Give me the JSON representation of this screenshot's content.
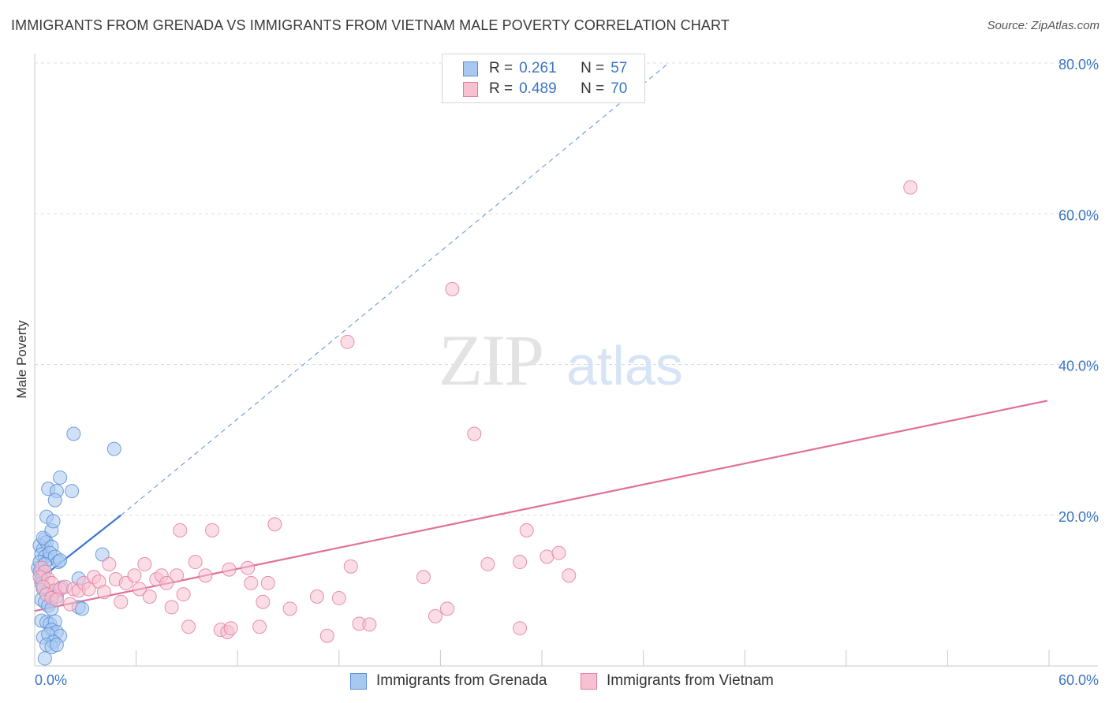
{
  "header": {
    "title": "IMMIGRANTS FROM GRENADA VS IMMIGRANTS FROM VIETNAM MALE POVERTY CORRELATION CHART",
    "source": "Source: ZipAtlas.com"
  },
  "watermark": {
    "zip": "ZIP",
    "atlas": "atlas"
  },
  "legend_top": {
    "rows": [
      {
        "r_label": "R =",
        "r_value": "0.261",
        "n_label": "N =",
        "n_value": "57",
        "color": "#a9c8f0",
        "border": "#5b8fd6"
      },
      {
        "r_label": "R =",
        "r_value": "0.489",
        "n_label": "N =",
        "n_value": "70",
        "color": "#f7c1d2",
        "border": "#e07fa0"
      }
    ]
  },
  "legend_bottom": [
    {
      "label": "Immigrants from Grenada",
      "color": "#a9c8f0",
      "border": "#5b8fd6"
    },
    {
      "label": "Immigrants from Vietnam",
      "color": "#f7c1d2",
      "border": "#e07fa0"
    }
  ],
  "chart_data": {
    "type": "scatter",
    "title": "IMMIGRANTS FROM GRENADA VS IMMIGRANTS FROM VIETNAM MALE POVERTY CORRELATION CHART",
    "xlabel": "",
    "ylabel": "Male Poverty",
    "xlim": [
      0,
      60
    ],
    "ylim": [
      0,
      80
    ],
    "x_tick_labels": [
      "0.0%",
      "60.0%"
    ],
    "y_tick_labels": [
      "80.0%",
      "60.0%",
      "40.0%",
      "20.0%"
    ],
    "y_ticks": [
      80,
      60,
      40,
      20
    ],
    "series": [
      {
        "name": "Immigrants from Grenada",
        "color": "#5b8fd6",
        "fill": "#a9c8f0",
        "r": 0.261,
        "n": 57,
        "trend": {
          "x": [
            0,
            5.1
          ],
          "y": [
            11.0,
            20.0
          ],
          "extended_to": [
            37.5,
            80.0
          ]
        },
        "points": [
          [
            0.3,
            16.0
          ],
          [
            0.5,
            15.5
          ],
          [
            0.4,
            14.8
          ],
          [
            0.6,
            14.5
          ],
          [
            0.2,
            13.0
          ],
          [
            0.3,
            12.5
          ],
          [
            0.5,
            12.0
          ],
          [
            0.4,
            11.5
          ],
          [
            0.6,
            16.8
          ],
          [
            0.7,
            16.4
          ],
          [
            0.5,
            17.0
          ],
          [
            0.8,
            14.2
          ],
          [
            1.0,
            15.8
          ],
          [
            0.9,
            15.0
          ],
          [
            1.2,
            14.5
          ],
          [
            0.3,
            13.8
          ],
          [
            0.6,
            13.5
          ],
          [
            1.4,
            13.8
          ],
          [
            1.5,
            14.0
          ],
          [
            0.7,
            19.8
          ],
          [
            1.0,
            18.0
          ],
          [
            1.1,
            19.2
          ],
          [
            0.8,
            23.5
          ],
          [
            1.3,
            23.2
          ],
          [
            1.5,
            25.0
          ],
          [
            1.2,
            22.0
          ],
          [
            2.2,
            23.2
          ],
          [
            2.3,
            30.8
          ],
          [
            4.7,
            28.8
          ],
          [
            4.0,
            14.8
          ],
          [
            2.6,
            11.6
          ],
          [
            0.5,
            10.2
          ],
          [
            0.8,
            10.0
          ],
          [
            1.1,
            9.6
          ],
          [
            1.3,
            9.2
          ],
          [
            0.4,
            8.8
          ],
          [
            0.6,
            8.5
          ],
          [
            0.8,
            8.0
          ],
          [
            1.0,
            7.6
          ],
          [
            2.6,
            7.8
          ],
          [
            2.8,
            7.6
          ],
          [
            0.4,
            6.0
          ],
          [
            0.7,
            5.8
          ],
          [
            0.9,
            5.6
          ],
          [
            1.2,
            5.9
          ],
          [
            1.0,
            4.8
          ],
          [
            1.3,
            4.5
          ],
          [
            1.5,
            4.0
          ],
          [
            0.5,
            3.8
          ],
          [
            0.8,
            4.2
          ],
          [
            1.1,
            3.2
          ],
          [
            0.7,
            2.8
          ],
          [
            1.0,
            2.5
          ],
          [
            1.3,
            2.8
          ],
          [
            0.6,
            1.0
          ],
          [
            0.4,
            11.0
          ],
          [
            1.6,
            10.4
          ]
        ]
      },
      {
        "name": "Immigrants from Vietnam",
        "color": "#e07fa0",
        "fill": "#f7c1d2",
        "r": 0.489,
        "n": 70,
        "trend": {
          "x": [
            0,
            59.9
          ],
          "y": [
            7.3,
            35.2
          ]
        },
        "points": [
          [
            0.4,
            13.0
          ],
          [
            0.6,
            12.5
          ],
          [
            0.3,
            11.8
          ],
          [
            0.8,
            11.5
          ],
          [
            1.0,
            11.0
          ],
          [
            0.5,
            10.5
          ],
          [
            1.2,
            10.0
          ],
          [
            1.5,
            10.2
          ],
          [
            1.8,
            10.5
          ],
          [
            0.7,
            9.5
          ],
          [
            1.0,
            9.0
          ],
          [
            1.3,
            8.8
          ],
          [
            2.1,
            8.2
          ],
          [
            2.3,
            10.2
          ],
          [
            2.6,
            10.0
          ],
          [
            2.9,
            11.0
          ],
          [
            3.2,
            10.2
          ],
          [
            3.5,
            11.8
          ],
          [
            3.8,
            11.2
          ],
          [
            4.1,
            9.8
          ],
          [
            4.4,
            13.5
          ],
          [
            4.8,
            11.5
          ],
          [
            5.1,
            8.5
          ],
          [
            5.4,
            11.0
          ],
          [
            5.9,
            12.0
          ],
          [
            6.2,
            10.2
          ],
          [
            6.5,
            13.5
          ],
          [
            6.8,
            9.2
          ],
          [
            7.2,
            11.5
          ],
          [
            7.5,
            12.0
          ],
          [
            7.8,
            11.0
          ],
          [
            8.1,
            7.8
          ],
          [
            8.4,
            12.0
          ],
          [
            8.8,
            9.5
          ],
          [
            9.1,
            5.2
          ],
          [
            9.5,
            13.8
          ],
          [
            10.1,
            12.0
          ],
          [
            8.6,
            18.0
          ],
          [
            10.5,
            18.0
          ],
          [
            11.5,
            12.8
          ],
          [
            12.6,
            13.0
          ],
          [
            12.8,
            11.0
          ],
          [
            11.0,
            4.8
          ],
          [
            11.4,
            4.5
          ],
          [
            11.6,
            5.0
          ],
          [
            13.3,
            5.2
          ],
          [
            13.5,
            8.5
          ],
          [
            13.8,
            11.0
          ],
          [
            14.2,
            18.8
          ],
          [
            15.1,
            7.6
          ],
          [
            16.7,
            9.2
          ],
          [
            17.3,
            4.0
          ],
          [
            18.0,
            9.0
          ],
          [
            18.5,
            43.0
          ],
          [
            18.7,
            13.2
          ],
          [
            19.2,
            5.6
          ],
          [
            19.8,
            5.5
          ],
          [
            23.0,
            11.8
          ],
          [
            23.7,
            6.6
          ],
          [
            24.4,
            7.6
          ],
          [
            24.7,
            50.0
          ],
          [
            26.0,
            30.8
          ],
          [
            26.8,
            13.5
          ],
          [
            28.7,
            13.8
          ],
          [
            28.7,
            5.0
          ],
          [
            29.1,
            18.0
          ],
          [
            30.3,
            14.5
          ],
          [
            31.6,
            12.0
          ],
          [
            31.0,
            15.0
          ],
          [
            51.8,
            63.5
          ]
        ]
      }
    ]
  }
}
